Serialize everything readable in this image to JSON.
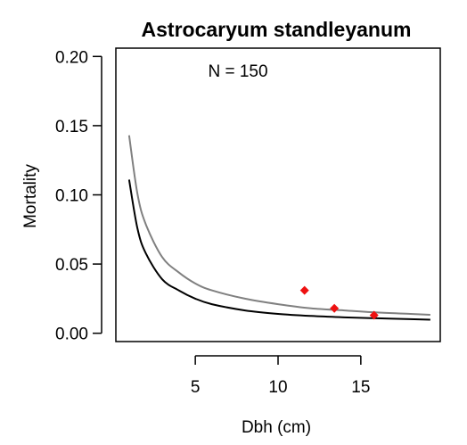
{
  "chart_data": {
    "type": "scatter",
    "title": "Astrocaryum standleyanum",
    "xlabel": "Dbh (cm)",
    "ylabel": "Mortality",
    "annotation": "N = 150",
    "xlim": [
      0.2,
      19.8
    ],
    "ylim": [
      -0.006,
      0.206
    ],
    "x_ticks": [
      5,
      10,
      15
    ],
    "x_tick_labels": [
      "5",
      "10",
      "15"
    ],
    "y_ticks": [
      0,
      0.05,
      0.1,
      0.15,
      0.2
    ],
    "y_tick_labels": [
      "0.00",
      "0.05",
      "0.10",
      "0.15",
      "0.20"
    ],
    "grid": false,
    "points": {
      "color": "#ee1111",
      "x": [
        11.6,
        13.4,
        15.8
      ],
      "y": [
        0.031,
        0.018,
        0.013
      ]
    },
    "curves": [
      {
        "color": "#808080",
        "x": [
          1.0,
          1.5,
          2.0,
          3.0,
          4.0,
          5.0,
          6.0,
          8.0,
          10.0,
          12.0,
          14.0,
          16.0,
          18.0,
          19.2
        ],
        "y": [
          0.143,
          0.101,
          0.079,
          0.055,
          0.044,
          0.036,
          0.031,
          0.025,
          0.021,
          0.018,
          0.0165,
          0.015,
          0.014,
          0.0133
        ]
      },
      {
        "color": "#000000",
        "x": [
          1.0,
          1.5,
          2.0,
          3.0,
          4.0,
          5.0,
          6.0,
          8.0,
          10.0,
          12.0,
          14.0,
          16.0,
          18.0,
          19.2
        ],
        "y": [
          0.111,
          0.076,
          0.058,
          0.039,
          0.031,
          0.025,
          0.021,
          0.0165,
          0.014,
          0.0125,
          0.0115,
          0.0108,
          0.0102,
          0.0098
        ]
      }
    ]
  }
}
